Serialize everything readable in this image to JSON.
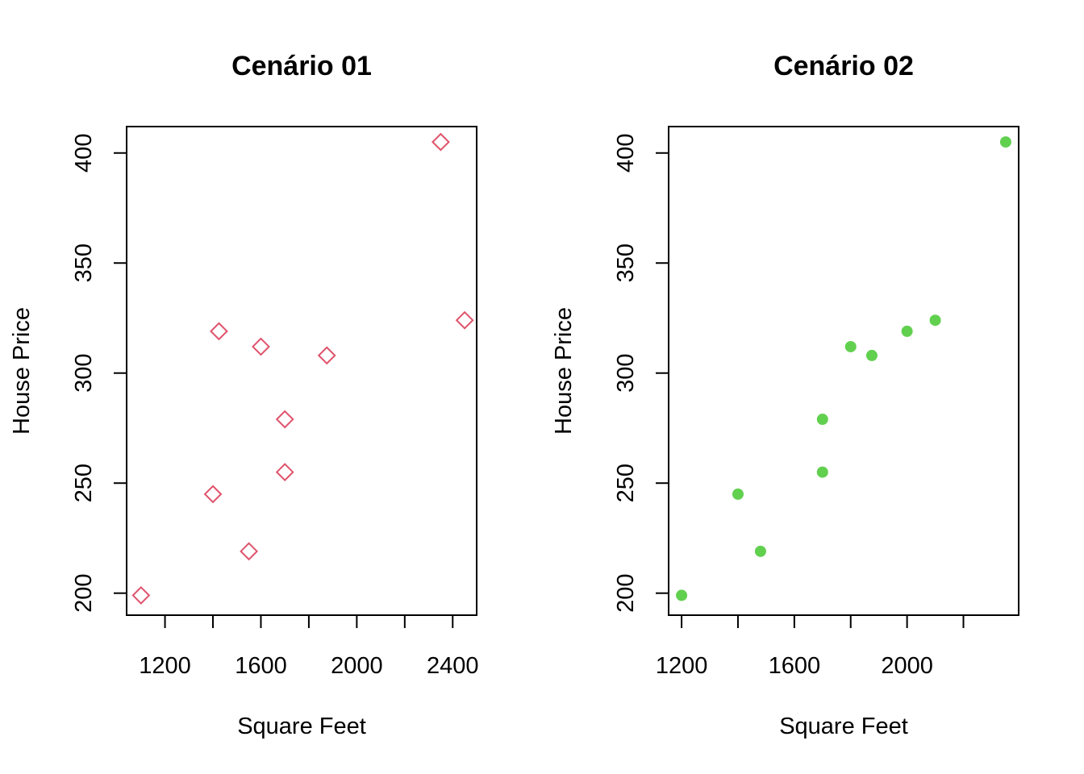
{
  "chart_data": [
    {
      "type": "scatter",
      "title": "Cenário 01",
      "xlabel": "Square Feet",
      "ylabel": "House Price",
      "xlim": [
        1040,
        2500
      ],
      "ylim": [
        190,
        412
      ],
      "x_ticks": [
        1200,
        1400,
        1600,
        1800,
        2000,
        2200,
        2400
      ],
      "x_tick_labels": [
        "1200",
        "",
        "1600",
        "",
        "2000",
        "",
        "2400"
      ],
      "y_ticks": [
        200,
        250,
        300,
        350,
        400
      ],
      "y_tick_labels": [
        "200",
        "250",
        "300",
        "350",
        "400"
      ],
      "marker": "open-diamond",
      "color": "#DF536B",
      "series": [
        {
          "x": [
            1100,
            1400,
            1425,
            1550,
            1600,
            1700,
            1700,
            1875,
            2350,
            2450
          ],
          "y": [
            199,
            245,
            319,
            219,
            312,
            279,
            255,
            308,
            405,
            324
          ]
        }
      ]
    },
    {
      "type": "scatter",
      "title": "Cenário 02",
      "xlabel": "Square Feet",
      "ylabel": "House Price",
      "xlim": [
        1154,
        2396
      ],
      "ylim": [
        190,
        412
      ],
      "x_ticks": [
        1200,
        1400,
        1600,
        1800,
        2000,
        2200
      ],
      "x_tick_labels": [
        "1200",
        "",
        "1600",
        "",
        "2000",
        ""
      ],
      "y_ticks": [
        200,
        250,
        300,
        350,
        400
      ],
      "y_tick_labels": [
        "200",
        "250",
        "300",
        "350",
        "400"
      ],
      "marker": "filled-circle",
      "color": "#61D04F",
      "series": [
        {
          "x": [
            1200,
            1400,
            1480,
            1700,
            1700,
            1800,
            1875,
            2000,
            2100,
            2350
          ],
          "y": [
            199,
            245,
            219,
            279,
            255,
            312,
            308,
            319,
            324,
            405
          ]
        }
      ]
    }
  ]
}
